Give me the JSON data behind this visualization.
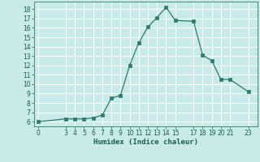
{
  "x": [
    0,
    3,
    4,
    5,
    6,
    7,
    8,
    9,
    10,
    11,
    12,
    13,
    14,
    15,
    17,
    18,
    19,
    20,
    21,
    23
  ],
  "y": [
    6,
    6.3,
    6.3,
    6.3,
    6.4,
    6.7,
    8.5,
    8.8,
    12.0,
    14.4,
    16.1,
    17.1,
    18.2,
    16.8,
    16.7,
    13.1,
    12.5,
    10.5,
    10.5,
    9.2
  ],
  "line_color": "#2d7b6e",
  "marker": "s",
  "marker_size": 2.2,
  "bg_color": "#c8eae8",
  "grid_color": "#b0d8d6",
  "xlabel": "Humidex (Indice chaleur)",
  "ylim": [
    5.5,
    18.8
  ],
  "xlim": [
    -0.5,
    24.0
  ],
  "yticks": [
    6,
    7,
    8,
    9,
    10,
    11,
    12,
    13,
    14,
    15,
    16,
    17,
    18
  ],
  "xticks": [
    0,
    3,
    4,
    5,
    6,
    7,
    8,
    9,
    10,
    11,
    12,
    13,
    14,
    15,
    17,
    18,
    19,
    20,
    21,
    23
  ],
  "label_fontsize": 6.5,
  "tick_fontsize": 5.5
}
